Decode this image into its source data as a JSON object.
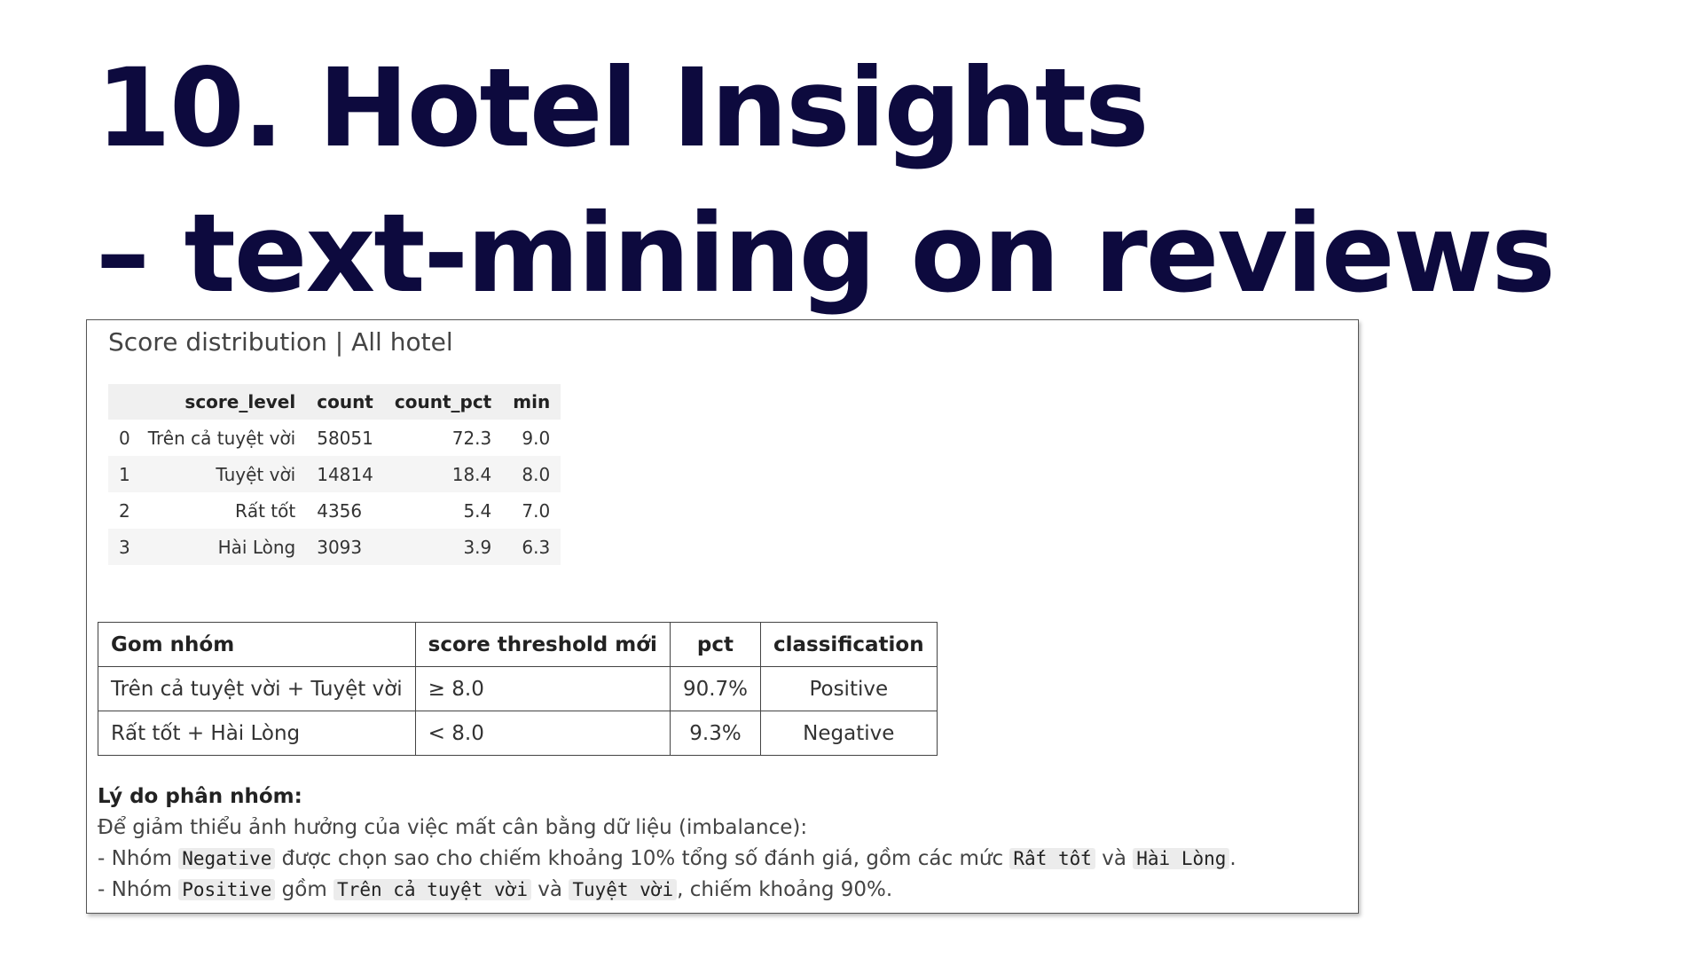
{
  "slide": {
    "title_line1": "10. Hotel Insights",
    "title_line2": "– text-mining on reviews"
  },
  "panel": {
    "caption": "Score distribution | All hotel"
  },
  "dataframe": {
    "columns": [
      "",
      "score_level",
      "count",
      "count_pct",
      "min"
    ],
    "rows": [
      {
        "index": "0",
        "score_level": "Trên cả tuyệt vời",
        "count": "58051",
        "count_pct": "72.3",
        "min": "9.0"
      },
      {
        "index": "1",
        "score_level": "Tuyệt vời",
        "count": "14814",
        "count_pct": "18.4",
        "min": "8.0"
      },
      {
        "index": "2",
        "score_level": "Rất tốt",
        "count": "4356",
        "count_pct": "5.4",
        "min": "7.0"
      },
      {
        "index": "3",
        "score_level": "Hài Lòng",
        "count": "3093",
        "count_pct": "3.9",
        "min": "6.3"
      }
    ]
  },
  "summary_table": {
    "headers": [
      "Gom nhóm",
      "score threshold mới",
      "pct",
      "classification"
    ],
    "rows": [
      {
        "group": "Trên cả tuyệt vời + Tuyệt vời",
        "threshold": "≥ 8.0",
        "pct": "90.7%",
        "classification": "Positive"
      },
      {
        "group": "Rất tốt + Hài Lòng",
        "threshold": "< 8.0",
        "pct": "9.3%",
        "classification": "Negative"
      }
    ]
  },
  "notes": {
    "heading": "Lý do phân nhóm:",
    "line1": "Để giảm thiểu ảnh hưởng của việc mất cân bằng dữ liệu (imbalance):",
    "line2_prefix": "- Nhóm ",
    "line2_code1": "Negative",
    "line2_mid": " được chọn sao cho chiếm khoảng 10% tổng số đánh giá, gồm các mức ",
    "line2_code2": "Rất tốt",
    "line2_and": " và ",
    "line2_code3": "Hài Lòng",
    "line2_suffix": ".",
    "line3_prefix": "- Nhóm ",
    "line3_code1": "Positive",
    "line3_mid": " gồm ",
    "line3_code2": "Trên cả tuyệt vời",
    "line3_and": " và ",
    "line3_code3": "Tuyệt vời",
    "line3_suffix": ", chiếm khoảng 90%."
  }
}
